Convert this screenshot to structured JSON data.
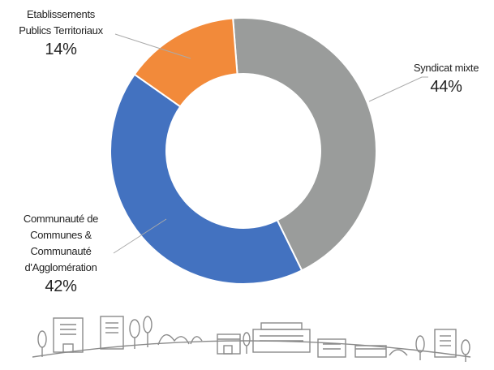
{
  "chart_data": {
    "type": "pie",
    "categories": [
      "Syndicat mixte",
      "Communauté de\nCommunes &\nCommunauté\nd'Agglomération",
      "Etablissements\nPublics Territoriaux"
    ],
    "values": [
      44,
      42,
      14
    ],
    "value_labels": [
      "44%",
      "42%",
      "14%"
    ],
    "colors": [
      "#9a9c9b",
      "#4372c0",
      "#f28a3a"
    ]
  }
}
